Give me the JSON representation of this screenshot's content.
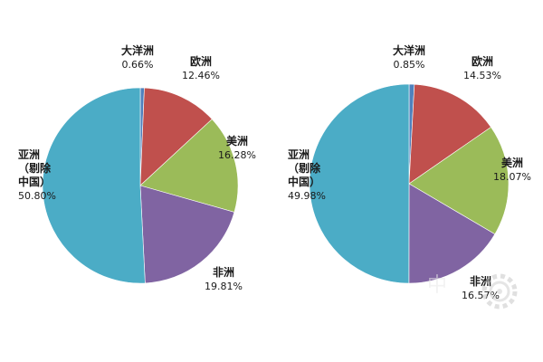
{
  "chart_data": [
    {
      "type": "pie",
      "title": "",
      "slices": [
        {
          "name": "大洋洲",
          "value": 0.66,
          "label_lines": [
            "大洋洲"
          ],
          "value_label": "0.66%",
          "color": "#4f81bd"
        },
        {
          "name": "欧洲",
          "value": 12.46,
          "label_lines": [
            "欧洲"
          ],
          "value_label": "12.46%",
          "color": "#c0504d"
        },
        {
          "name": "美洲",
          "value": 16.28,
          "label_lines": [
            "美洲"
          ],
          "value_label": "16.28%",
          "color": "#9bbb59"
        },
        {
          "name": "非洲",
          "value": 19.81,
          "label_lines": [
            "非洲"
          ],
          "value_label": "19.81%",
          "color": "#8064a2"
        },
        {
          "name": "亚洲（剔除中国）",
          "value": 50.8,
          "label_lines": [
            "亚洲",
            "（剔除",
            "中国）"
          ],
          "value_label": "50.80%",
          "color": "#4bacc6"
        }
      ]
    },
    {
      "type": "pie",
      "title": "",
      "slices": [
        {
          "name": "大洋洲",
          "value": 0.85,
          "label_lines": [
            "大洋洲"
          ],
          "value_label": "0.85%",
          "color": "#4f81bd"
        },
        {
          "name": "欧洲",
          "value": 14.53,
          "label_lines": [
            "欧洲"
          ],
          "value_label": "14.53%",
          "color": "#c0504d"
        },
        {
          "name": "美洲",
          "value": 18.07,
          "label_lines": [
            "美洲"
          ],
          "value_label": "18.07%",
          "color": "#9bbb59"
        },
        {
          "name": "非洲",
          "value": 16.57,
          "label_lines": [
            "非洲"
          ],
          "value_label": "16.57%",
          "color": "#8064a2"
        },
        {
          "name": "亚洲（剔除中国）",
          "value": 49.98,
          "label_lines": [
            "亚洲",
            "（剔除",
            "中国）"
          ],
          "value_label": "49.98%",
          "color": "#4bacc6"
        }
      ]
    }
  ],
  "watermark": {
    "text": "中",
    "icon": "gear-logo-icon"
  }
}
